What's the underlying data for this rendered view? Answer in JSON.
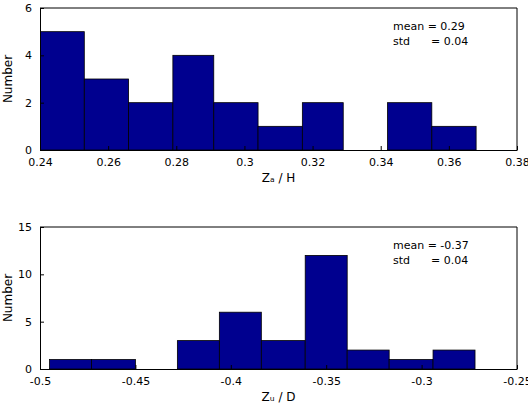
{
  "chart_data": [
    {
      "type": "histogram",
      "bins": [
        0.24,
        0.253,
        0.266,
        0.279,
        0.291,
        0.304,
        0.317,
        0.329,
        0.342,
        0.355,
        0.368
      ],
      "counts": [
        5,
        3,
        2,
        4,
        2,
        1,
        2,
        0,
        2,
        1
      ],
      "color": "#00008f",
      "xlim": [
        0.24,
        0.38
      ],
      "xticks": [
        0.24,
        0.26,
        0.28,
        0.3,
        0.32,
        0.34,
        0.36,
        0.38
      ],
      "ylim": [
        0,
        6
      ],
      "yticks": [
        0,
        2,
        4,
        6
      ],
      "xlabel": "Zₐ / H",
      "ylabel": "Number",
      "annotations": [
        "mean = 0.29",
        "std      = 0.04"
      ]
    },
    {
      "type": "histogram",
      "bins": [
        -0.495,
        -0.473,
        -0.45,
        -0.428,
        -0.406,
        -0.384,
        -0.361,
        -0.339,
        -0.317,
        -0.294,
        -0.272
      ],
      "counts": [
        1,
        1,
        0,
        3,
        6,
        3,
        12,
        2,
        1,
        2
      ],
      "color": "#00008f",
      "xlim": [
        -0.5,
        -0.25
      ],
      "xticks": [
        -0.5,
        -0.45,
        -0.4,
        -0.35,
        -0.3,
        -0.25
      ],
      "ylim": [
        0,
        15
      ],
      "yticks": [
        0,
        5,
        10,
        15
      ],
      "xlabel": "Zᵤ / D",
      "ylabel": "Number",
      "annotations": [
        "mean = -0.37",
        "std      = 0.04"
      ]
    }
  ]
}
